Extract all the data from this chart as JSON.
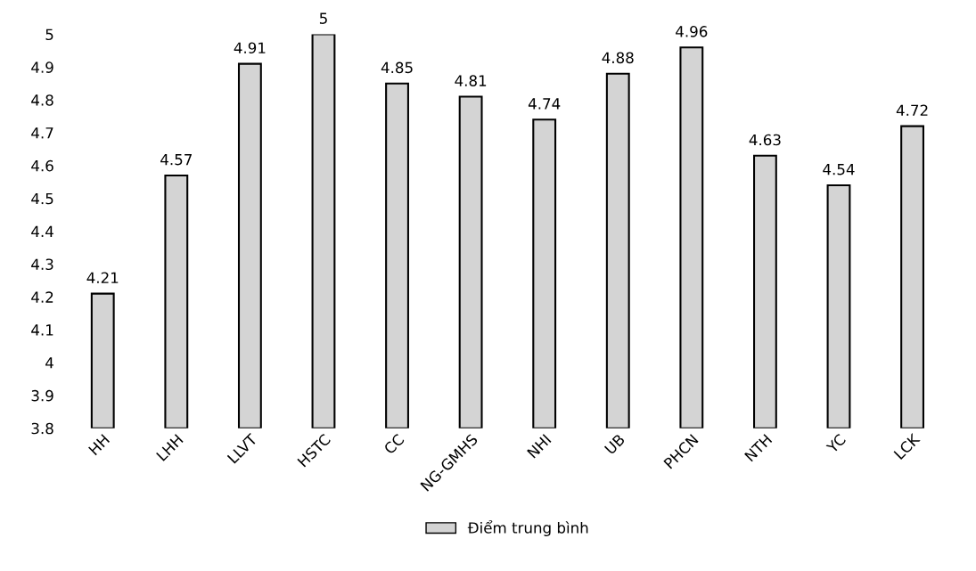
{
  "chart_data": {
    "type": "bar",
    "categories": [
      "HH",
      "LHH",
      "LLVT",
      "HSTC",
      "CC",
      "NG-GMHS",
      "NHI",
      "UB",
      "PHCN",
      "NTH",
      "YC",
      "LCK"
    ],
    "series": [
      {
        "name": "Điểm trung bình",
        "color": "#d4d4d4",
        "values": [
          4.21,
          4.57,
          4.91,
          5,
          4.85,
          4.81,
          4.74,
          4.88,
          4.96,
          4.63,
          4.54,
          4.72
        ]
      }
    ],
    "ylim": [
      3.8,
      5
    ],
    "yticks": [
      3.8,
      3.9,
      4,
      4.1,
      4.2,
      4.3,
      4.4,
      4.5,
      4.6,
      4.7,
      4.8,
      4.9,
      5
    ],
    "data_labels": true,
    "legend": "bottom",
    "grid": false
  }
}
